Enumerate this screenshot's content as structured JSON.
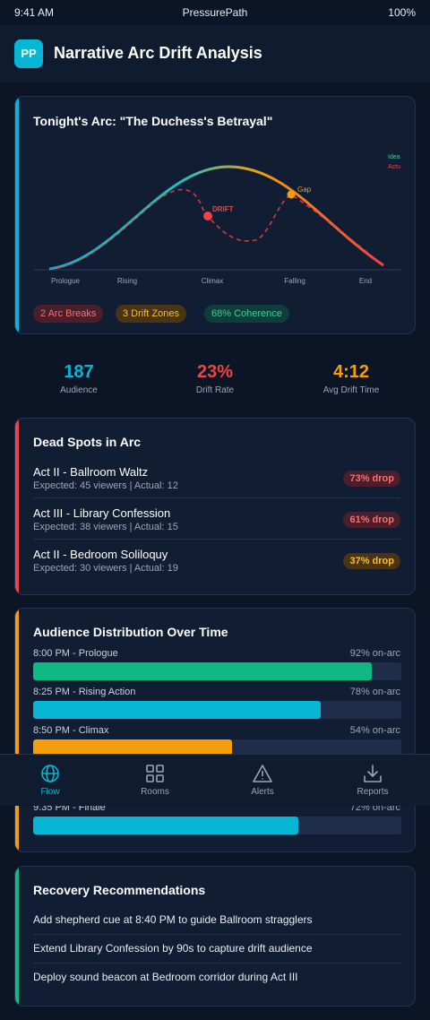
{
  "status_bar": {
    "time": "9:41 AM",
    "app": "PressurePath",
    "battery": "100%"
  },
  "header": {
    "logo": "PP",
    "title": "Narrative Arc Drift Analysis"
  },
  "arc_card": {
    "title": "Tonight's Arc: \"The Duchess's Betrayal\"",
    "legend": [
      "Ideal",
      "Actual"
    ],
    "stages": [
      "Prologue",
      "Rising",
      "Climax",
      "Falling",
      "End"
    ],
    "annotations": [
      "DRIFT",
      "Gap"
    ],
    "chips": [
      "2 Arc Breaks",
      "3 Drift Zones",
      "68% Coherence"
    ]
  },
  "stats": [
    {
      "value": "187",
      "label": "Audience"
    },
    {
      "value": "23%",
      "label": "Drift Rate"
    },
    {
      "value": "4:12",
      "label": "Avg Drift Time"
    }
  ],
  "dead_spots": {
    "title": "Dead Spots in Arc",
    "items": [
      {
        "name": "Act II - Ballroom Waltz",
        "detail": "Expected: 45 viewers | Actual: 12",
        "badge": "73% drop"
      },
      {
        "name": "Act III - Library Confession",
        "detail": "Expected: 38 viewers | Actual: 15",
        "badge": "61% drop"
      },
      {
        "name": "Act II - Bedroom Soliloquy",
        "detail": "Expected: 30 viewers | Actual: 19",
        "badge": "37% drop"
      }
    ]
  },
  "distribution": {
    "title": "Audience Distribution Over Time",
    "rows": [
      {
        "label": "8:00 PM - Prologue",
        "value": 92,
        "value_label": "92% on-arc"
      },
      {
        "label": "8:25 PM - Rising Action",
        "value": 78,
        "value_label": "78% on-arc"
      },
      {
        "label": "8:50 PM - Climax",
        "value": 54,
        "value_label": "54% on-arc"
      },
      {
        "label": "9:35 PM - Finale",
        "value": 72,
        "value_label": "72% on-arc"
      }
    ]
  },
  "nav": [
    "Flow",
    "Rooms",
    "Alerts",
    "Reports"
  ],
  "recommendations": {
    "title": "Recovery Recommendations",
    "items": [
      "Add shepherd cue at 8:40 PM to guide Ballroom stragglers",
      "Extend Library Confession by 90s to capture drift audience",
      "Deploy sound beacon at Bedroom corridor during Act III"
    ]
  }
}
